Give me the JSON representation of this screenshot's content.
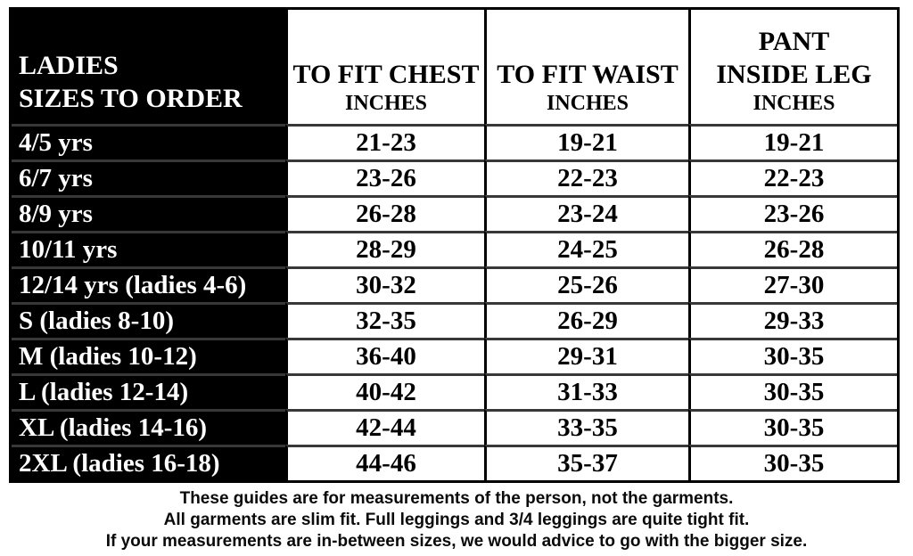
{
  "table": {
    "header": {
      "size_column": [
        "LADIES",
        "SIZES TO ORDER"
      ],
      "chest": [
        "TO FIT CHEST",
        "INCHES"
      ],
      "waist": [
        "TO FIT WAIST",
        "INCHES"
      ],
      "pant": [
        "PANT",
        "INSIDE LEG",
        "INCHES"
      ]
    },
    "rows": [
      {
        "size": "4/5 yrs",
        "chest": "21-23",
        "waist": "19-21",
        "pant": "19-21"
      },
      {
        "size": "6/7 yrs",
        "chest": "23-26",
        "waist": "22-23",
        "pant": "22-23"
      },
      {
        "size": "8/9 yrs",
        "chest": "26-28",
        "waist": "23-24",
        "pant": "23-26"
      },
      {
        "size": "10/11 yrs",
        "chest": "28-29",
        "waist": "24-25",
        "pant": "26-28"
      },
      {
        "size": "12/14 yrs (ladies 4-6)",
        "chest": "30-32",
        "waist": "25-26",
        "pant": "27-30"
      },
      {
        "size": "S (ladies 8-10)",
        "chest": "32-35",
        "waist": "26-29",
        "pant": "29-33"
      },
      {
        "size": "M (ladies 10-12)",
        "chest": "36-40",
        "waist": "29-31",
        "pant": "30-35"
      },
      {
        "size": "L (ladies 12-14)",
        "chest": "40-42",
        "waist": "31-33",
        "pant": "30-35"
      },
      {
        "size": "XL (ladies 14-16)",
        "chest": "42-44",
        "waist": "33-35",
        "pant": "30-35"
      },
      {
        "size": "2XL (ladies 16-18)",
        "chest": "44-46",
        "waist": "35-37",
        "pant": "30-35"
      }
    ]
  },
  "notes": [
    "These guides are for measurements of the person, not the garments.",
    "All garments are slim fit. Full leggings and 3/4 leggings are quite tight fit.",
    "If your measurements are in-between sizes, we would advice to go with the bigger size."
  ],
  "colors": {
    "label_column_bg": "#000000",
    "text_on_dark": "#ffffff",
    "text_on_light": "#000000",
    "row_separator": "#383838",
    "column_separator": "#000000"
  }
}
